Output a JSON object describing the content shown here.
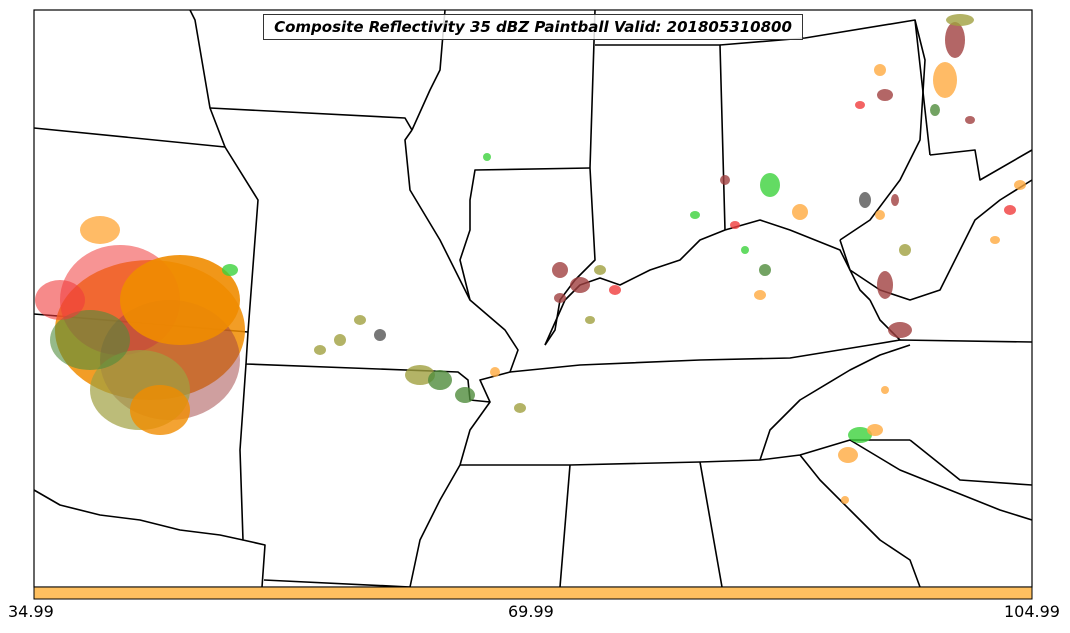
{
  "title": "Composite Reflectivity 35 dBZ Paintball Valid: 201805310800",
  "colorbar": {
    "color": "#ffc060",
    "ticks": [
      "34.99",
      "69.99",
      "104.99"
    ]
  },
  "colors": {
    "border": "#000000",
    "blob_red": "#f03c3c",
    "blob_orange": "#f08c00",
    "blob_light_orange": "#ffaa40",
    "blob_green": "#3cd23c",
    "blob_dark_green": "#508c3c",
    "blob_olive": "#a0a040",
    "blob_brown": "#a04040",
    "blob_gray": "#555555"
  }
}
